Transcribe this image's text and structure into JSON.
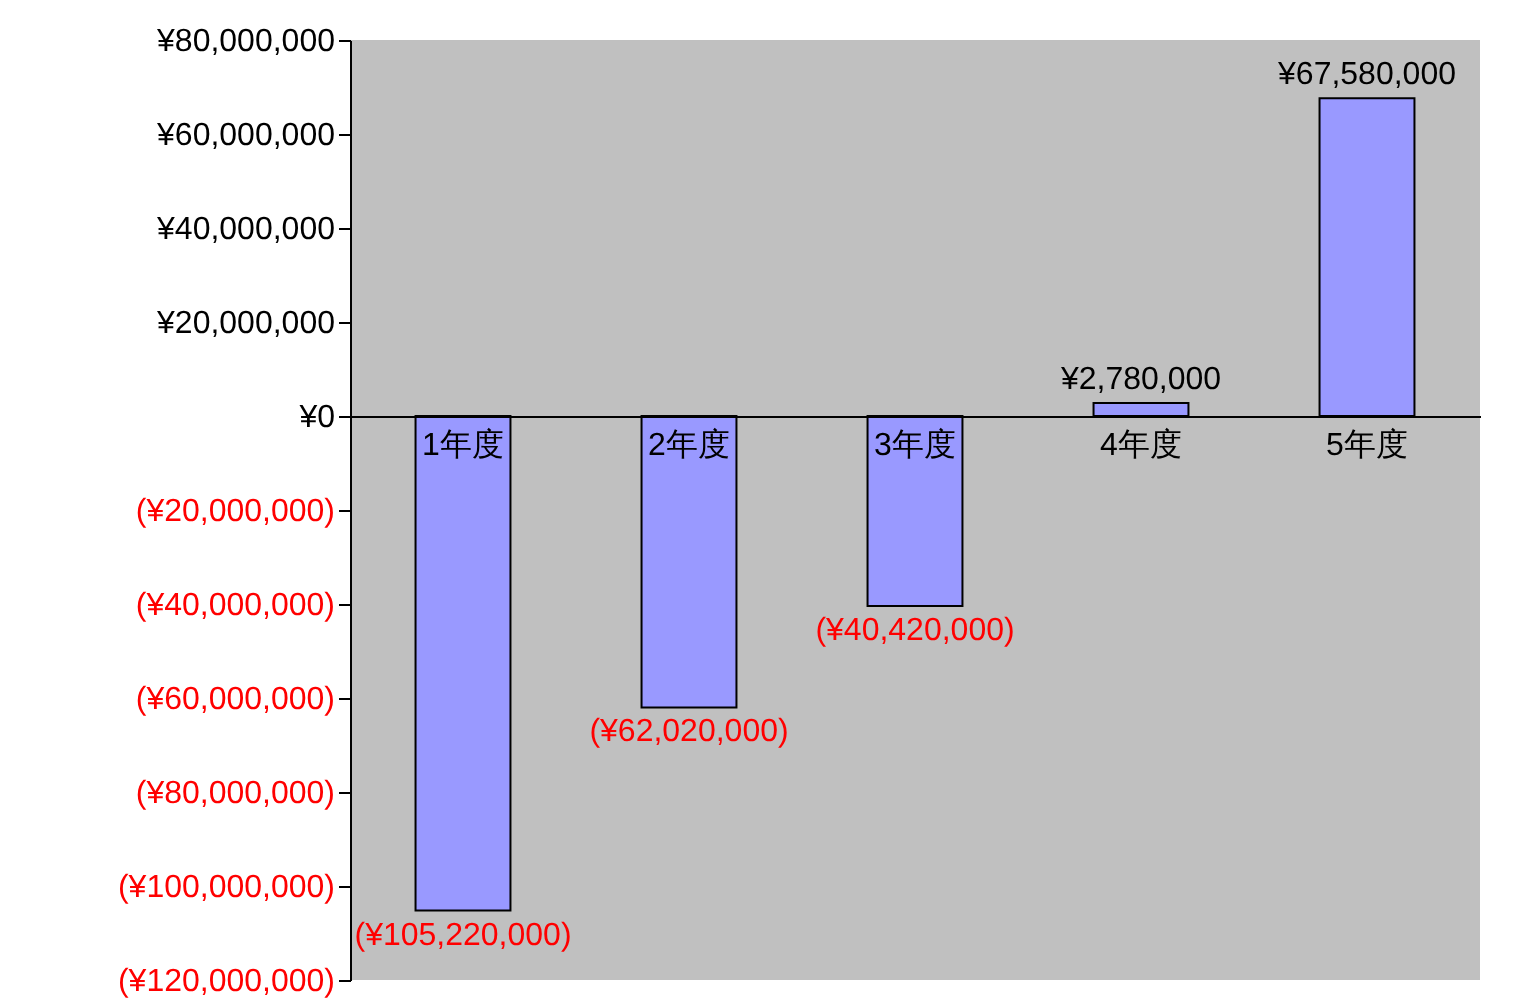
{
  "chart_data": {
    "type": "bar",
    "categories": [
      "1年度",
      "2年度",
      "3年度",
      "4年度",
      "5年度"
    ],
    "values": [
      -105220000,
      -62020000,
      -40420000,
      2780000,
      67580000
    ],
    "color": "#9999ff",
    "value_labels": [
      "(¥105,220,000)",
      "(¥62,020,000)",
      "(¥40,420,000)",
      "¥2,780,000",
      "¥67,580,000"
    ],
    "ylim": [
      -120000000,
      80000000
    ],
    "yticks": [
      {
        "value": 80000000,
        "label": "¥80,000,000"
      },
      {
        "value": 60000000,
        "label": "¥60,000,000"
      },
      {
        "value": 40000000,
        "label": "¥40,000,000"
      },
      {
        "value": 20000000,
        "label": "¥20,000,000"
      },
      {
        "value": 0,
        "label": "¥0"
      },
      {
        "value": -20000000,
        "label": "(¥20,000,000)"
      },
      {
        "value": -40000000,
        "label": "(¥40,000,000)"
      },
      {
        "value": -60000000,
        "label": "(¥60,000,000)"
      },
      {
        "value": -80000000,
        "label": "(¥80,000,000)"
      },
      {
        "value": -100000000,
        "label": "(¥100,000,000)"
      },
      {
        "value": -120000000,
        "label": "(¥120,000,000)"
      }
    ],
    "grid": false
  }
}
